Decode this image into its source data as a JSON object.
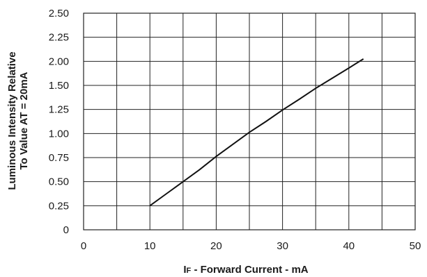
{
  "chart_data": {
    "type": "line",
    "x_ticks": [
      "0",
      "10",
      "20",
      "30",
      "40",
      "50"
    ],
    "y_ticks": [
      "0",
      "0.25",
      "0.50",
      "0.75",
      "1.00",
      "1.25",
      "1.50",
      "2.00",
      "2.25",
      "2.50"
    ],
    "x_grid_values": [
      0,
      5,
      10,
      15,
      20,
      25,
      30,
      35,
      40,
      45,
      50
    ],
    "xlabel_sub": "F",
    "xlabel_prefix": "I",
    "xlabel_rest": " - Forward Current - mA",
    "ylabel_line1": "Luminous Intensity Relative",
    "ylabel_line2": "To Value AT = 20mA",
    "xlim": [
      0,
      50
    ],
    "grid": true,
    "series": [
      {
        "x": [
          10,
          12.5,
          15,
          17.5,
          20,
          22.5,
          25,
          27.5,
          30,
          32.5,
          35,
          37.5,
          40,
          42.2
        ],
        "y_tick_position": [
          1,
          1.5,
          2.0,
          2.5,
          3.05,
          3.55,
          4.05,
          4.5,
          4.98,
          5.42,
          5.88,
          6.3,
          6.72,
          7.1
        ]
      }
    ]
  }
}
